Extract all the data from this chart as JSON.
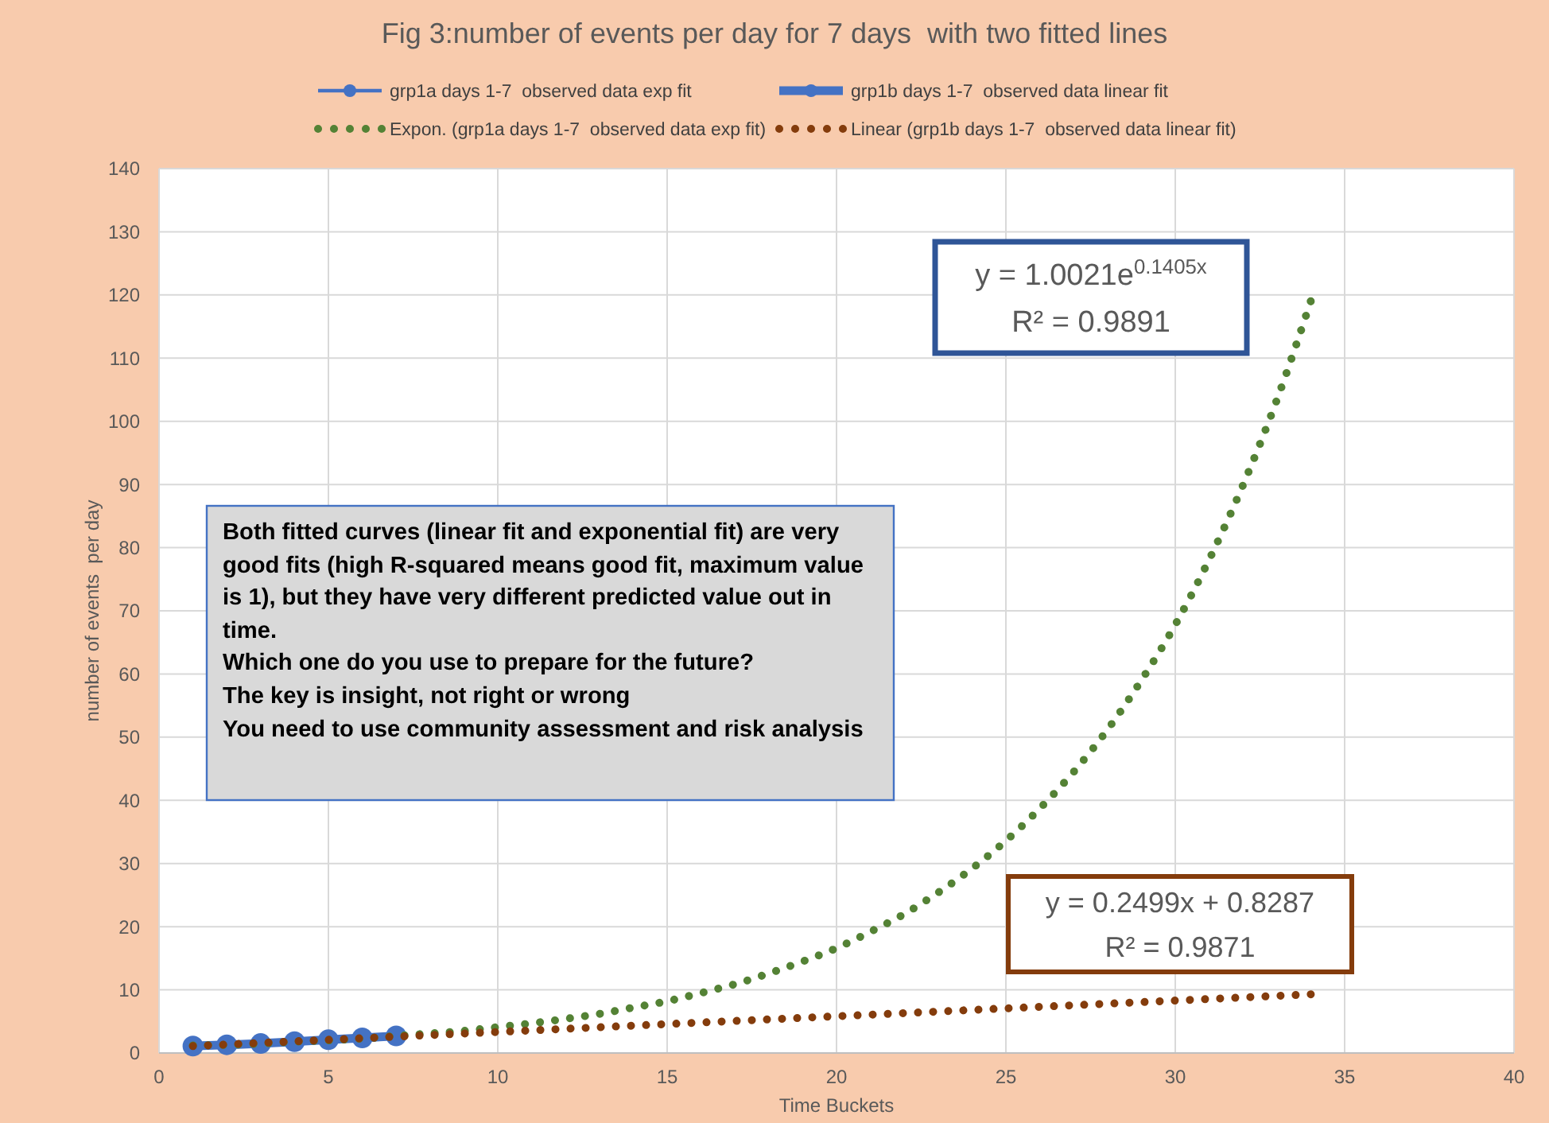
{
  "chart_data": {
    "type": "line",
    "title": "Fig 3:number of events per day for 7 days  with two fitted lines",
    "xlabel": "Time Buckets",
    "ylabel": "number of events  per day",
    "xlim": [
      0,
      40
    ],
    "xticks": [
      0,
      5,
      10,
      15,
      20,
      25,
      30,
      35,
      40
    ],
    "ylim": [
      0,
      140
    ],
    "yticks": [
      0,
      10,
      20,
      30,
      40,
      50,
      60,
      70,
      80,
      90,
      100,
      110,
      120,
      130,
      140
    ],
    "grid": true,
    "legend": "top",
    "marker": "circle",
    "line_style": "solid",
    "series": [
      {
        "name": "grp1a days 1-7  observed data exp fit",
        "color": "#4472c4",
        "values": [
          null,
          null,
          null,
          null,
          null,
          null,
          null
        ]
      },
      {
        "name": "grp1b days 1-7  observed data linear fit",
        "color": "#4472c4",
        "x": [
          1,
          2,
          3,
          4,
          5,
          6,
          7
        ],
        "values": [
          1.1,
          1.3,
          1.5,
          1.8,
          2.1,
          2.4,
          2.7
        ]
      },
      {
        "name": "Expon. (grp1a days 1-7  observed data exp fit)",
        "color": "#548235",
        "type": "line",
        "marker": "none",
        "line_style": "dotted",
        "x": [
          1,
          2,
          3,
          4,
          5,
          6,
          7,
          8,
          9,
          10,
          11,
          12,
          13,
          14,
          15,
          16,
          17,
          18,
          19,
          20,
          21,
          22,
          23,
          24,
          25,
          26,
          27,
          28,
          29,
          30,
          31,
          32,
          33,
          34
        ],
        "values": [
          1.2,
          1.3,
          1.5,
          1.8,
          2.0,
          2.3,
          2.7,
          3.1,
          3.5,
          4.1,
          4.7,
          5.4,
          6.2,
          7.2,
          8.2,
          9.5,
          10.9,
          12.6,
          14.5,
          16.6,
          19.2,
          22.0,
          25.4,
          29.2,
          33.6,
          38.7,
          44.5,
          51.2,
          59.0,
          67.8,
          78.1,
          89.9,
          103.4,
          119.0
        ]
      },
      {
        "name": "Linear (grp1b days 1-7  observed data linear fit)",
        "color": "#843c0c",
        "type": "line",
        "marker": "none",
        "line_style": "dotted",
        "x": [
          1,
          34
        ],
        "values": [
          1.1,
          9.3
        ]
      }
    ],
    "annotations": [
      "y = 1.0021e$^{0.1405x}$\nR² = 0.9891",
      "Both fitted curves (linear fit and exponential fit) are very good fits (high R-squared means good fit, maximum value is 1), but they have very different predicted value out in time.\nWhich one do you use to prepare for the future?\nThe key is insight, not right or wrong\nYou need to use community assessment and risk analysis",
      "y = 0.2499x + 0.8287\nR² = 0.9871"
    ]
  }
}
